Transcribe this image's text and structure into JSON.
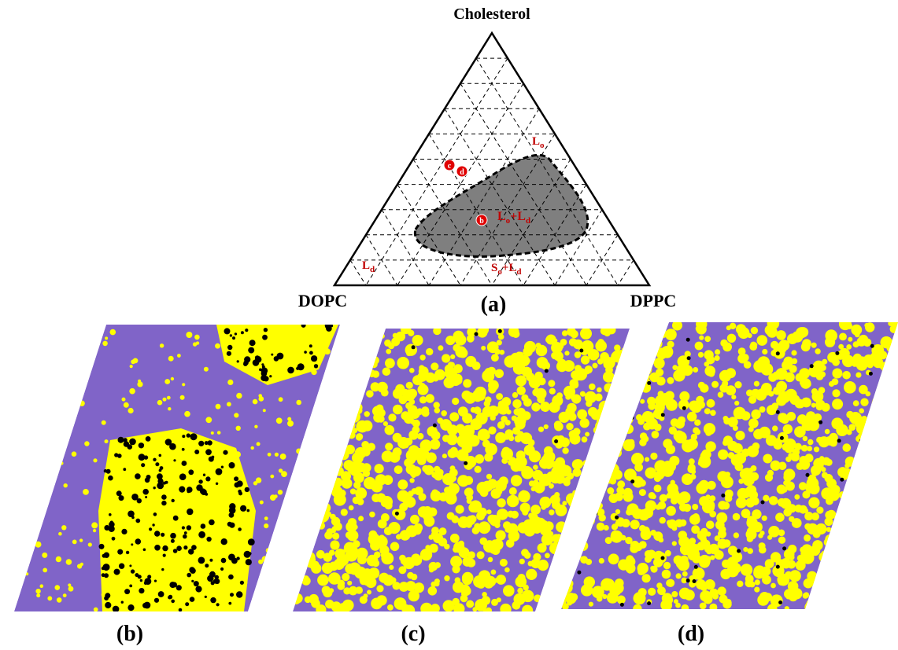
{
  "ternary": {
    "apex_top": "Cholesterol",
    "apex_left": "DOPC",
    "apex_right": "DPPC",
    "panel_label": "(a)",
    "phase_labels": [
      {
        "parts": [
          {
            "text": "L"
          },
          {
            "sub": "o"
          }
        ]
      },
      {
        "parts": [
          {
            "text": "L"
          },
          {
            "sub": "o"
          },
          {
            "text": "+L"
          },
          {
            "sub": "d"
          }
        ]
      },
      {
        "parts": [
          {
            "text": "L"
          },
          {
            "sub": "d"
          }
        ]
      },
      {
        "parts": [
          {
            "text": "S"
          },
          {
            "sub": "o"
          },
          {
            "text": "+L"
          },
          {
            "sub": "d"
          }
        ]
      }
    ],
    "points": [
      "b",
      "c",
      "d"
    ]
  },
  "snapshots": [
    {
      "label": "(b)"
    },
    {
      "label": "(c)"
    },
    {
      "label": "(d)"
    }
  ]
}
